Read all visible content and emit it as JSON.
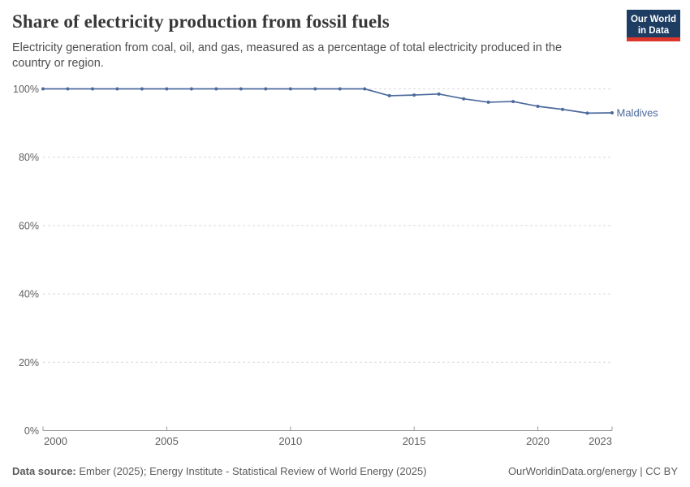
{
  "header": {
    "title": "Share of electricity production from fossil fuels",
    "subtitle": "Electricity generation from coal, oil, and gas, measured as a percentage of total electricity produced in the country or region.",
    "logo": {
      "line1": "Our World",
      "line2": "in Data"
    }
  },
  "chart_data": {
    "type": "line",
    "title": "Share of electricity production from fossil fuels",
    "xlabel": "",
    "ylabel": "",
    "xlim": [
      2000,
      2023
    ],
    "ylim": [
      0,
      100
    ],
    "grid": "dashed-horizontal",
    "legend_position": "end-of-line-label",
    "x_ticks": [
      {
        "value": 2000,
        "label": "2000"
      },
      {
        "value": 2005,
        "label": "2005"
      },
      {
        "value": 2010,
        "label": "2010"
      },
      {
        "value": 2015,
        "label": "2015"
      },
      {
        "value": 2020,
        "label": "2020"
      },
      {
        "value": 2023,
        "label": "2023"
      }
    ],
    "y_ticks": [
      {
        "value": 0,
        "label": "0%"
      },
      {
        "value": 20,
        "label": "20%"
      },
      {
        "value": 40,
        "label": "40%"
      },
      {
        "value": 60,
        "label": "60%"
      },
      {
        "value": 80,
        "label": "80%"
      },
      {
        "value": 100,
        "label": "100%"
      }
    ],
    "series": [
      {
        "name": "Maldives",
        "color": "#4C6A9C",
        "x": [
          2000,
          2001,
          2002,
          2003,
          2004,
          2005,
          2006,
          2007,
          2008,
          2009,
          2010,
          2011,
          2012,
          2013,
          2014,
          2015,
          2016,
          2017,
          2018,
          2019,
          2020,
          2021,
          2022,
          2023
        ],
        "values": [
          100,
          100,
          100,
          100,
          100,
          100,
          100,
          100,
          100,
          100,
          100,
          100,
          100,
          100,
          98.0,
          98.2,
          98.5,
          97.1,
          96.1,
          96.3,
          94.9,
          94.0,
          92.9,
          93.0
        ]
      }
    ]
  },
  "footer": {
    "source_label": "Data source:",
    "source_text": " Ember (2025); Energy Institute - Statistical Review of World Energy (2025)",
    "credit": "OurWorldinData.org/energy | CC BY"
  },
  "colors": {
    "line": "#4C6A9C",
    "grid": "#d9d9d9",
    "axis": "#999999",
    "tick_label": "#5e5e5e",
    "entity_label": "#4C6A9C"
  }
}
